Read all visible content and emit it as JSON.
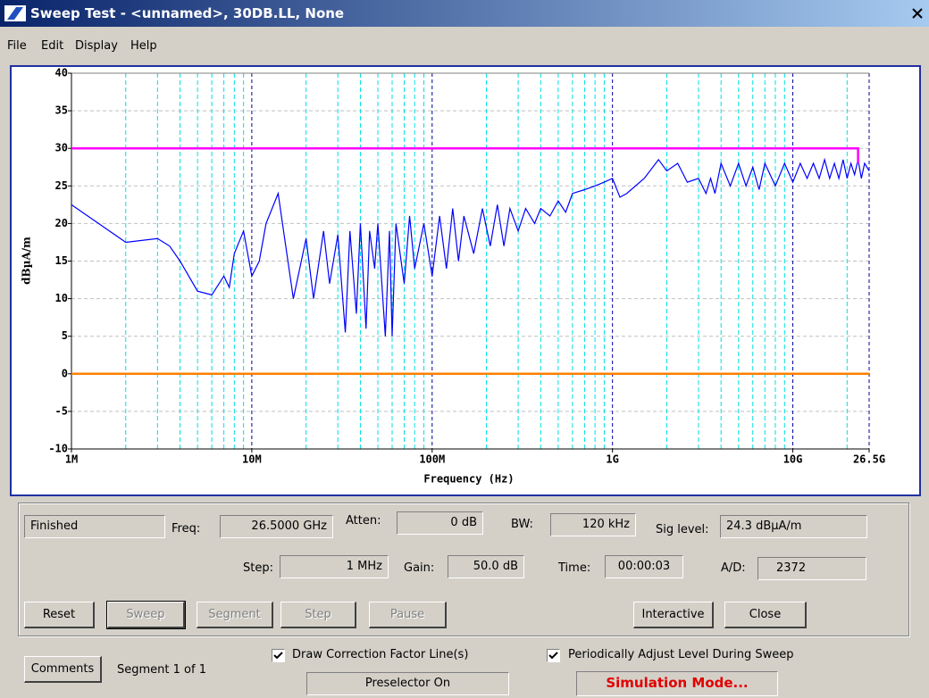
{
  "window": {
    "title": "Sweep Test - <unnamed>, 30DB.LL, None"
  },
  "menu": [
    "File",
    "Edit",
    "Display",
    "Help"
  ],
  "chart_data": {
    "type": "line",
    "x_label": "Frequency (Hz)",
    "y_label": "dBµA/m",
    "xlog": true,
    "grid": true,
    "xlim": [
      1000000.0,
      26500000000.0
    ],
    "ylim": [
      -10,
      40
    ],
    "xticks": [
      {
        "value": 1000000.0,
        "label": "1M"
      },
      {
        "value": 10000000.0,
        "label": "10M"
      },
      {
        "value": 100000000.0,
        "label": "100M"
      },
      {
        "value": 1000000000.0,
        "label": "1G"
      },
      {
        "value": 10000000000.0,
        "label": "10G"
      },
      {
        "value": 26500000000.0,
        "label": "26.5G"
      }
    ],
    "x_minor_grid": [
      2000000.0,
      3000000.0,
      4000000.0,
      5000000.0,
      6000000.0,
      7000000.0,
      8000000.0,
      9000000.0,
      20000000.0,
      30000000.0,
      40000000.0,
      50000000.0,
      60000000.0,
      70000000.0,
      80000000.0,
      90000000.0,
      200000000.0,
      300000000.0,
      400000000.0,
      500000000.0,
      600000000.0,
      700000000.0,
      800000000.0,
      900000000.0,
      2000000000.0,
      3000000000.0,
      4000000000.0,
      5000000000.0,
      6000000000.0,
      7000000000.0,
      8000000000.0,
      9000000000.0,
      20000000000.0
    ],
    "yticks": [
      -10,
      -5,
      0,
      5,
      10,
      15,
      20,
      25,
      30,
      35,
      40
    ],
    "series": [
      {
        "color": "#0000ff",
        "x": [
          1000000.0,
          2000000.0,
          3000000.0,
          3500000.0,
          4000000.0,
          5000000.0,
          6000000.0,
          7000000.0,
          7500000.0,
          8000000.0,
          9000000.0,
          10000000.0,
          11000000.0,
          12000000.0,
          14000000.0,
          15000000.0,
          17000000.0,
          20000000.0,
          22000000.0,
          25000000.0,
          27000000.0,
          30000000.0,
          33000000.0,
          35000000.0,
          38000000.0,
          40000000.0,
          43000000.0,
          45000000.0,
          48000000.0,
          50000000.0,
          55000000.0,
          58000000.0,
          60000000.0,
          63000000.0,
          70000000.0,
          75000000.0,
          80000000.0,
          90000000.0,
          100000000.0,
          110000000.0,
          120000000.0,
          130000000.0,
          140000000.0,
          150000000.0,
          170000000.0,
          190000000.0,
          210000000.0,
          230000000.0,
          250000000.0,
          270000000.0,
          300000000.0,
          330000000.0,
          370000000.0,
          400000000.0,
          450000000.0,
          500000000.0,
          550000000.0,
          600000000.0,
          700000000.0,
          800000000.0,
          900000000.0,
          1000000000.0,
          1100000000.0,
          1200000000.0,
          1500000000.0,
          1800000000.0,
          2000000000.0,
          2300000000.0,
          2600000000.0,
          3000000000.0,
          3300000000.0,
          3500000000.0,
          3700000000.0,
          4000000000.0,
          4500000000.0,
          5000000000.0,
          5500000000.0,
          6000000000.0,
          6500000000.0,
          7000000000.0,
          8000000000.0,
          9000000000.0,
          10000000000.0,
          11000000000.0,
          12000000000.0,
          13000000000.0,
          14000000000.0,
          15000000000.0,
          16000000000.0,
          17000000000.0,
          18000000000.0,
          19000000000.0,
          20000000000.0,
          21000000000.0,
          22000000000.0,
          23000000000.0,
          24000000000.0,
          25000000000.0,
          26500000000.0
        ],
        "values": [
          22.5,
          17.5,
          18,
          17,
          15,
          11,
          10.5,
          13,
          11.5,
          16,
          19,
          13,
          15,
          20,
          24,
          19,
          10,
          18,
          10,
          19,
          12,
          18.5,
          5.5,
          19,
          8,
          20,
          6,
          19,
          14,
          20,
          5,
          19,
          5,
          20,
          12,
          21,
          14,
          20,
          13,
          21,
          14,
          22,
          15,
          21,
          16,
          22,
          17,
          22.5,
          17,
          22,
          19,
          22,
          20,
          22,
          21,
          23,
          21.5,
          24,
          24.5,
          25,
          25.5,
          26,
          23.5,
          24,
          26,
          28.5,
          27,
          28,
          25.5,
          26,
          24,
          26,
          24,
          28,
          25,
          28,
          25,
          27.5,
          24.5,
          28,
          25,
          28,
          25.5,
          28,
          26,
          28,
          26,
          28.5,
          26,
          28,
          26,
          28.5,
          26,
          28,
          26.5,
          28.5,
          26,
          28,
          27
        ]
      },
      {
        "color": "#ff00ff",
        "x": [
          1000000.0,
          23000000000.0,
          23000000000.0
        ],
        "values": [
          30,
          30,
          28
        ]
      },
      {
        "color": "#ff8000",
        "x": [
          1000000.0,
          26500000000.0
        ],
        "values": [
          0,
          0
        ]
      }
    ]
  },
  "status": {
    "state": "Finished",
    "freq": {
      "label": "Freq:",
      "value": "26.5000 GHz"
    },
    "atten": {
      "label": "Atten:",
      "value": "0 dB"
    },
    "bw": {
      "label": "BW:",
      "value": "120 kHz"
    },
    "sig": {
      "label": "Sig level:",
      "value": "24.3 dBµA/m"
    },
    "step": {
      "label": "Step:",
      "value": "1 MHz"
    },
    "gain": {
      "label": "Gain:",
      "value": "50.0 dB"
    },
    "time": {
      "label": "Time:",
      "value": "00:00:03"
    },
    "ad": {
      "label": "A/D:",
      "value": "2372"
    }
  },
  "buttons": [
    "Reset",
    "Sweep",
    "Segment",
    "Step",
    "Pause",
    "Interactive",
    "Close"
  ],
  "comments": "Comments",
  "segment": "Segment 1 of 1",
  "checkboxes": [
    "Draw Correction Factor Line(s)",
    "Periodically Adjust Level During Sweep"
  ],
  "preselector": "Preselector On",
  "mode": "Simulation Mode..."
}
